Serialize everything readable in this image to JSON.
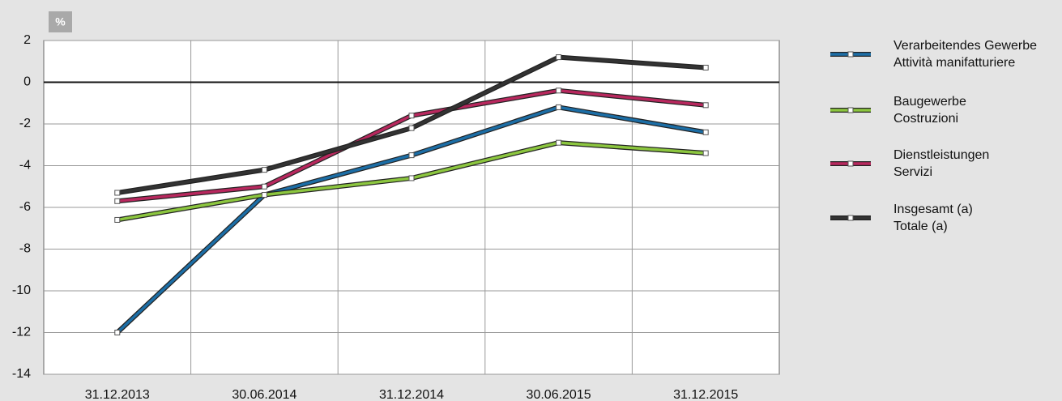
{
  "chart_data": {
    "type": "line",
    "y_label": "%",
    "categories": [
      "31.12.2013",
      "30.06.2014",
      "31.12.2014",
      "30.06.2015",
      "31.12.2015"
    ],
    "series": [
      {
        "name": [
          "Verarbeitendes Gewerbe",
          "Attività manifatturiere"
        ],
        "color": "#1c6ea6",
        "values": [
          -12,
          -5.4,
          -3.5,
          -1.2,
          -2.4
        ]
      },
      {
        "name": [
          "Baugewerbe",
          "Costruzioni"
        ],
        "color": "#8cc63f",
        "values": [
          -6.6,
          -5.4,
          -4.6,
          -2.9,
          -3.4
        ]
      },
      {
        "name": [
          "Dienstleistungen",
          "Servizi"
        ],
        "color": "#b8285e",
        "values": [
          -5.7,
          -5.0,
          -1.6,
          -0.4,
          -1.1
        ]
      },
      {
        "name": [
          "Insgesamt (a)",
          "Totale (a)"
        ],
        "color": "#333333",
        "values": [
          -5.3,
          -4.2,
          -2.2,
          1.2,
          0.7
        ]
      }
    ],
    "ylim": [
      -14,
      2
    ],
    "yticks": [
      -14,
      -12,
      -10,
      -8,
      -6,
      -4,
      -2,
      0,
      2
    ],
    "grid": true
  }
}
